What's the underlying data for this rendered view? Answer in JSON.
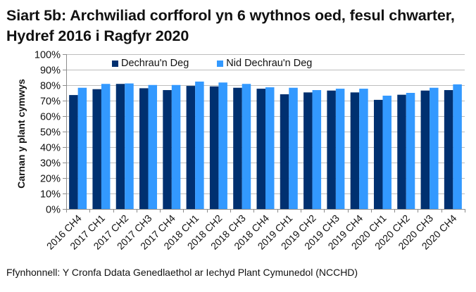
{
  "title": "Siart 5b: Archwiliad corfforol yn 6 wythnos oed, fesul chwarter, Hydref 2016 i Ragfyr 2020",
  "source": "Ffynhonnell: Y Cronfa Ddata Genedlaethol ar Iechyd Plant Cymunedol (NCCHD)",
  "legend": [
    {
      "label": "Dechrau'n Deg",
      "color": "#003070"
    },
    {
      "label": "Nid Dechrau'n Deg",
      "color": "#3399FF"
    }
  ],
  "chart_data": {
    "type": "bar",
    "title": "Siart 5b: Archwiliad corfforol yn 6 wythnos oed, fesul chwarter, Hydref 2016 i Ragfyr 2020",
    "xlabel": "",
    "ylabel": "Carnan y plant cymwys",
    "ylim": [
      0,
      100
    ],
    "yticks": [
      "0%",
      "10%",
      "20%",
      "30%",
      "40%",
      "50%",
      "60%",
      "70%",
      "80%",
      "90%",
      "100%"
    ],
    "grid": true,
    "legend_position": "top",
    "categories": [
      "2016 CH4",
      "2017 CH1",
      "2017 CH2",
      "2017 CH3",
      "2017 CH4",
      "2018 CH1",
      "2018 CH2",
      "2018 CH3",
      "2018 CH4",
      "2019 CH1",
      "2019 CH2",
      "2019 CH3",
      "2019 CH4",
      "2020 CH1",
      "2020 CH2",
      "2020 CH3",
      "2020 CH4"
    ],
    "series": [
      {
        "name": "Dechrau'n Deg",
        "color": "#003070",
        "values": [
          73.6,
          77.4,
          80.8,
          78.0,
          76.8,
          79.5,
          79.2,
          78.3,
          77.7,
          74.1,
          75.3,
          76.5,
          75.3,
          70.5,
          73.8,
          76.5,
          76.8
        ]
      },
      {
        "name": "Nid Dechrau'n Deg",
        "color": "#3399FF",
        "values": [
          78.3,
          80.8,
          81.1,
          80.1,
          80.1,
          82.3,
          81.7,
          80.8,
          78.6,
          78.3,
          76.8,
          77.7,
          77.7,
          73.2,
          75.0,
          78.3,
          80.5
        ]
      }
    ]
  }
}
